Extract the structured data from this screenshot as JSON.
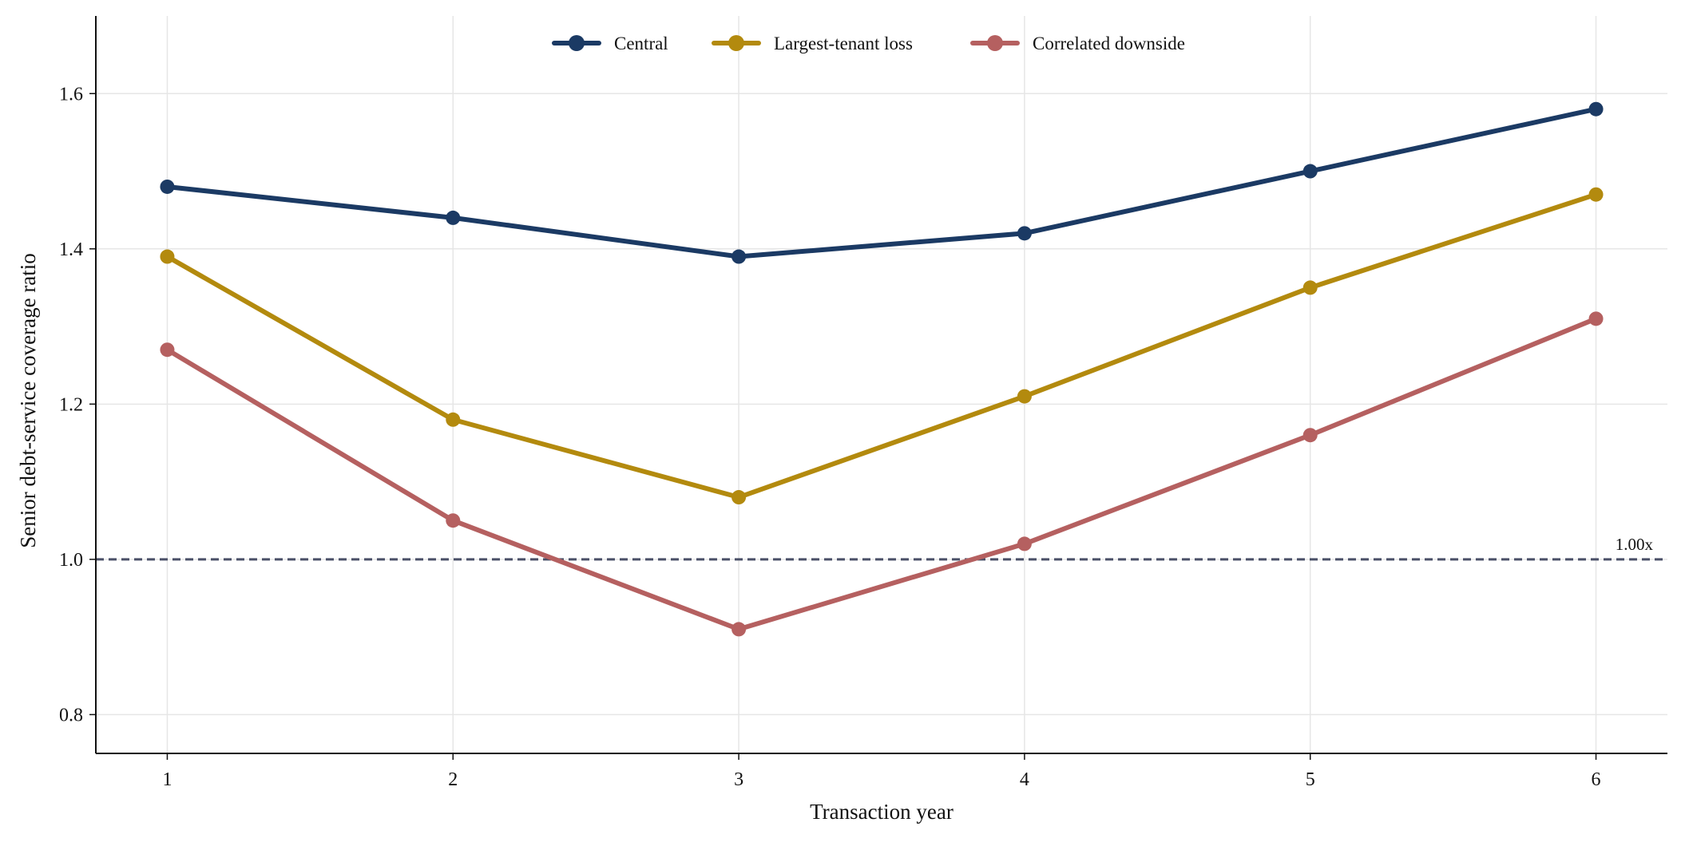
{
  "chart_data": {
    "type": "line",
    "title": "",
    "xlabel": "Transaction year",
    "ylabel": "Senior debt-service coverage ratio",
    "x": [
      1,
      2,
      3,
      4,
      5,
      6
    ],
    "xticks": [
      "1",
      "2",
      "3",
      "4",
      "5",
      "6"
    ],
    "xlim": [
      0.75,
      6.25
    ],
    "ylim": [
      0.75,
      1.7
    ],
    "yticks": [
      "0.8",
      "1.0",
      "1.2",
      "1.4",
      "1.6"
    ],
    "grid": true,
    "legend_position": "top-center",
    "series": [
      {
        "name": "Central",
        "color": "#1b3a64",
        "values": [
          1.48,
          1.44,
          1.39,
          1.42,
          1.5,
          1.58
        ]
      },
      {
        "name": "Largest-tenant loss",
        "color": "#b38a0e",
        "values": [
          1.39,
          1.18,
          1.08,
          1.21,
          1.35,
          1.47
        ]
      },
      {
        "name": "Correlated downside",
        "color": "#b56060",
        "values": [
          1.27,
          1.05,
          0.91,
          1.02,
          1.16,
          1.31
        ]
      }
    ],
    "reference_line": {
      "value": 1.0,
      "label": "1.00x",
      "color": "#4a5068",
      "style": "dashed"
    }
  }
}
